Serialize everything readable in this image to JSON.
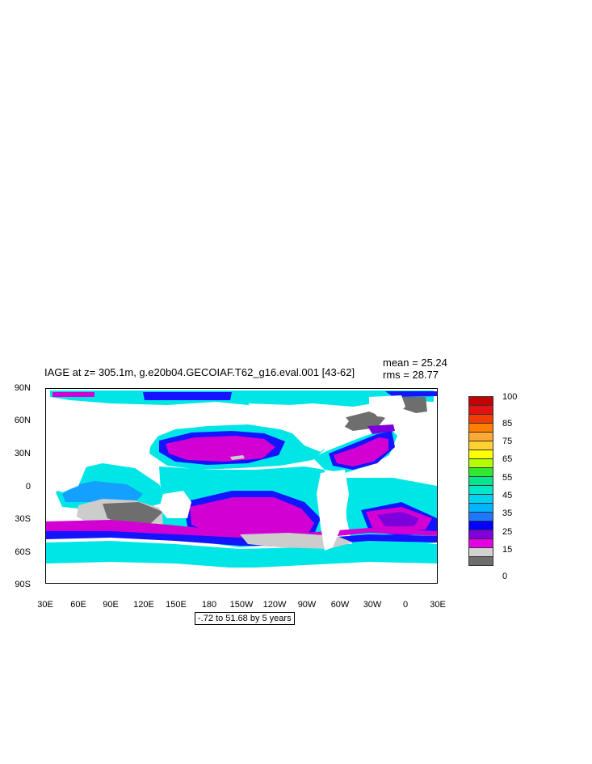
{
  "title": "IAGE at z= 305.1m, g.e20b04.GECOIAF.T62_g16.eval.001 [43-62]",
  "stats": {
    "mean": "mean = 25.24",
    "rms": "rms = 28.77"
  },
  "lat_labels": [
    "90N",
    "60N",
    "30N",
    "0",
    "30S",
    "60S",
    "90S"
  ],
  "lon_labels": [
    "30E",
    "60E",
    "90E",
    "120E",
    "150E",
    "180",
    "150W",
    "120W",
    "90W",
    "60W",
    "30W",
    "0",
    "30E"
  ],
  "contour_info": "-.72 to 51.68 by 5 years",
  "colorbar": {
    "labels": [
      "100",
      "85",
      "75",
      "65",
      "55",
      "45",
      "35",
      "25",
      "15",
      "0"
    ],
    "colors": [
      "#c40000",
      "#e01212",
      "#f23c00",
      "#ff7f00",
      "#ffa832",
      "#ffd232",
      "#ffff00",
      "#b4ff00",
      "#32e632",
      "#00e68c",
      "#00e6c8",
      "#00d2f0",
      "#00b4ff",
      "#1e78ff",
      "#0000ff",
      "#8200dc",
      "#e600e6",
      "#d2d2d2",
      "#6e6e6e"
    ]
  },
  "colors": {
    "land": "#ffffff",
    "magenta": "#d200d2",
    "purple": "#7d00dc",
    "blue": "#1414ff",
    "cyan": "#00e6e6",
    "lightcyan": "#00f0f0",
    "skyblue": "#14a0ff",
    "grey": "#6e6e6e",
    "lightgrey": "#cccccc"
  }
}
